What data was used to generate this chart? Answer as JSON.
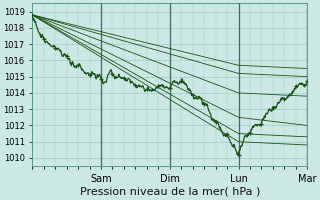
{
  "title": "Pression niveau de la mer( hPa )",
  "background_color": "#cce8e4",
  "grid_color": "#9ecec8",
  "line_color": "#1a5218",
  "ylim": [
    1009.5,
    1019.5
  ],
  "yticks": [
    1010,
    1011,
    1012,
    1013,
    1014,
    1015,
    1016,
    1017,
    1018,
    1019
  ],
  "xlim": [
    0,
    96
  ],
  "xtick_positions": [
    24,
    48,
    72,
    96
  ],
  "xtick_labels": [
    "Sam",
    "Dim",
    "Lun",
    "Mar"
  ],
  "xlabel_fontsize": 8,
  "ytick_fontsize": 6,
  "xtick_fontsize": 7
}
